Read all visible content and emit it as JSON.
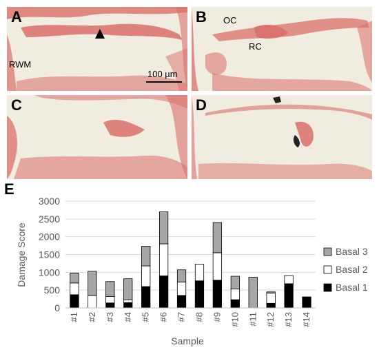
{
  "panels": [
    {
      "letter": "A",
      "annotations": [
        "RWM",
        "100 µm"
      ]
    },
    {
      "letter": "B",
      "annotations": [
        "OC",
        "RC"
      ]
    },
    {
      "letter": "C",
      "annotations": []
    },
    {
      "letter": "D",
      "annotations": []
    }
  ],
  "panel_e_letter": "E",
  "colors": {
    "basal3": "#a6a6a6",
    "basal2": "#ffffff",
    "basal1": "#000000",
    "grid": "#d9d9d9",
    "tissue": "#d9706a",
    "background": "#f1ece0"
  },
  "chart_data": {
    "type": "bar",
    "stacked": true,
    "categories": [
      "#1",
      "#2",
      "#3",
      "#4",
      "#5",
      "#6",
      "#7",
      "#8",
      "#9",
      "#10",
      "#11",
      "#12",
      "#13",
      "#14"
    ],
    "series": [
      {
        "name": "Basal 1",
        "values": [
          370,
          0,
          140,
          150,
          600,
          900,
          350,
          760,
          780,
          230,
          0,
          130,
          680,
          310
        ]
      },
      {
        "name": "Basal 2",
        "values": [
          330,
          350,
          180,
          80,
          580,
          900,
          380,
          470,
          770,
          300,
          0,
          290,
          230,
          0
        ]
      },
      {
        "name": "Basal 3",
        "values": [
          280,
          680,
          420,
          590,
          550,
          900,
          340,
          0,
          850,
          360,
          860,
          30,
          0,
          0
        ]
      }
    ],
    "xlabel": "Sample",
    "ylabel": "Damage Score",
    "ylim": [
      0,
      3000
    ],
    "yticks": [
      "0",
      "500",
      "1000",
      "1500",
      "2000",
      "2500",
      "3000"
    ],
    "grid": true,
    "legend_position": "right"
  }
}
